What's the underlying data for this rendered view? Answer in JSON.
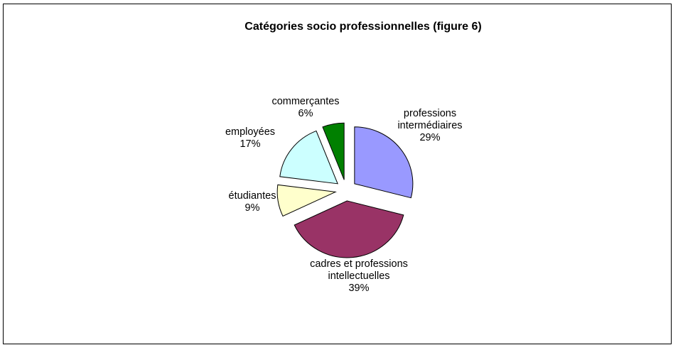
{
  "chart_data": {
    "type": "pie",
    "title": "Catégories socio professionnelles (figure 6)",
    "slices": [
      {
        "label": [
          "professions",
          "intermédiaires"
        ],
        "pct_label": "29%",
        "value": 29,
        "color": "#9999ff"
      },
      {
        "label": [
          "cadres et professions",
          "intellectuelles"
        ],
        "pct_label": "39%",
        "value": 39,
        "color": "#993366"
      },
      {
        "label": [
          "étudiantes"
        ],
        "pct_label": "9%",
        "value": 9,
        "color": "#ffffcc"
      },
      {
        "label": [
          "employées"
        ],
        "pct_label": "17%",
        "value": 17,
        "color": "#ccffff"
      },
      {
        "label": [
          "commerçantes"
        ],
        "pct_label": "6%",
        "value": 6,
        "color": "#008000"
      }
    ],
    "legend": "none",
    "exploded": true
  }
}
